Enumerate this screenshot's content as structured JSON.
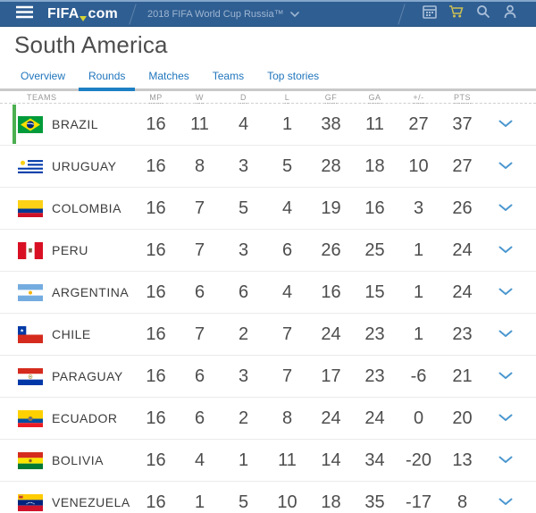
{
  "topbar": {
    "logo_part1": "FIFA",
    "logo_part2": "com",
    "breadcrumb": "2018 FIFA World Cup Russia™",
    "icons": {
      "menu": "hamburger-menu",
      "calendar": "calendar",
      "cart": "shopping-cart",
      "search": "magnifier",
      "account": "person"
    },
    "colors": {
      "bar": "#2f5e92",
      "icon": "#a9bfd9",
      "cart": "#cfc253"
    }
  },
  "page": {
    "title": "South America"
  },
  "tabs": [
    {
      "label": "Overview",
      "active": false
    },
    {
      "label": "Rounds",
      "active": true
    },
    {
      "label": "Matches",
      "active": false
    },
    {
      "label": "Teams",
      "active": false
    },
    {
      "label": "Top stories",
      "active": false
    }
  ],
  "table": {
    "columns": [
      "TEAMS",
      "MP",
      "W",
      "D",
      "L",
      "GF",
      "GA",
      "+/-",
      "PTS"
    ],
    "accent_green": "#4caf50",
    "chevron_blue": "#4a97cf",
    "rows": [
      {
        "team": "BRAZIL",
        "flag": "br",
        "qualified": true,
        "mp": "16",
        "w": "11",
        "d": "4",
        "l": "1",
        "gf": "38",
        "ga": "11",
        "diff": "27",
        "pts": "37"
      },
      {
        "team": "URUGUAY",
        "flag": "uy",
        "qualified": false,
        "mp": "16",
        "w": "8",
        "d": "3",
        "l": "5",
        "gf": "28",
        "ga": "18",
        "diff": "10",
        "pts": "27"
      },
      {
        "team": "COLOMBIA",
        "flag": "co",
        "qualified": false,
        "mp": "16",
        "w": "7",
        "d": "5",
        "l": "4",
        "gf": "19",
        "ga": "16",
        "diff": "3",
        "pts": "26"
      },
      {
        "team": "PERU",
        "flag": "pe",
        "qualified": false,
        "mp": "16",
        "w": "7",
        "d": "3",
        "l": "6",
        "gf": "26",
        "ga": "25",
        "diff": "1",
        "pts": "24"
      },
      {
        "team": "ARGENTINA",
        "flag": "ar",
        "qualified": false,
        "mp": "16",
        "w": "6",
        "d": "6",
        "l": "4",
        "gf": "16",
        "ga": "15",
        "diff": "1",
        "pts": "24"
      },
      {
        "team": "CHILE",
        "flag": "cl",
        "qualified": false,
        "mp": "16",
        "w": "7",
        "d": "2",
        "l": "7",
        "gf": "24",
        "ga": "23",
        "diff": "1",
        "pts": "23"
      },
      {
        "team": "PARAGUAY",
        "flag": "py",
        "qualified": false,
        "mp": "16",
        "w": "6",
        "d": "3",
        "l": "7",
        "gf": "17",
        "ga": "23",
        "diff": "-6",
        "pts": "21"
      },
      {
        "team": "ECUADOR",
        "flag": "ec",
        "qualified": false,
        "mp": "16",
        "w": "6",
        "d": "2",
        "l": "8",
        "gf": "24",
        "ga": "24",
        "diff": "0",
        "pts": "20"
      },
      {
        "team": "BOLIVIA",
        "flag": "bo",
        "qualified": false,
        "mp": "16",
        "w": "4",
        "d": "1",
        "l": "11",
        "gf": "14",
        "ga": "34",
        "diff": "-20",
        "pts": "13"
      },
      {
        "team": "VENEZUELA",
        "flag": "ve",
        "qualified": false,
        "mp": "16",
        "w": "1",
        "d": "5",
        "l": "10",
        "gf": "18",
        "ga": "35",
        "diff": "-17",
        "pts": "8"
      }
    ]
  }
}
